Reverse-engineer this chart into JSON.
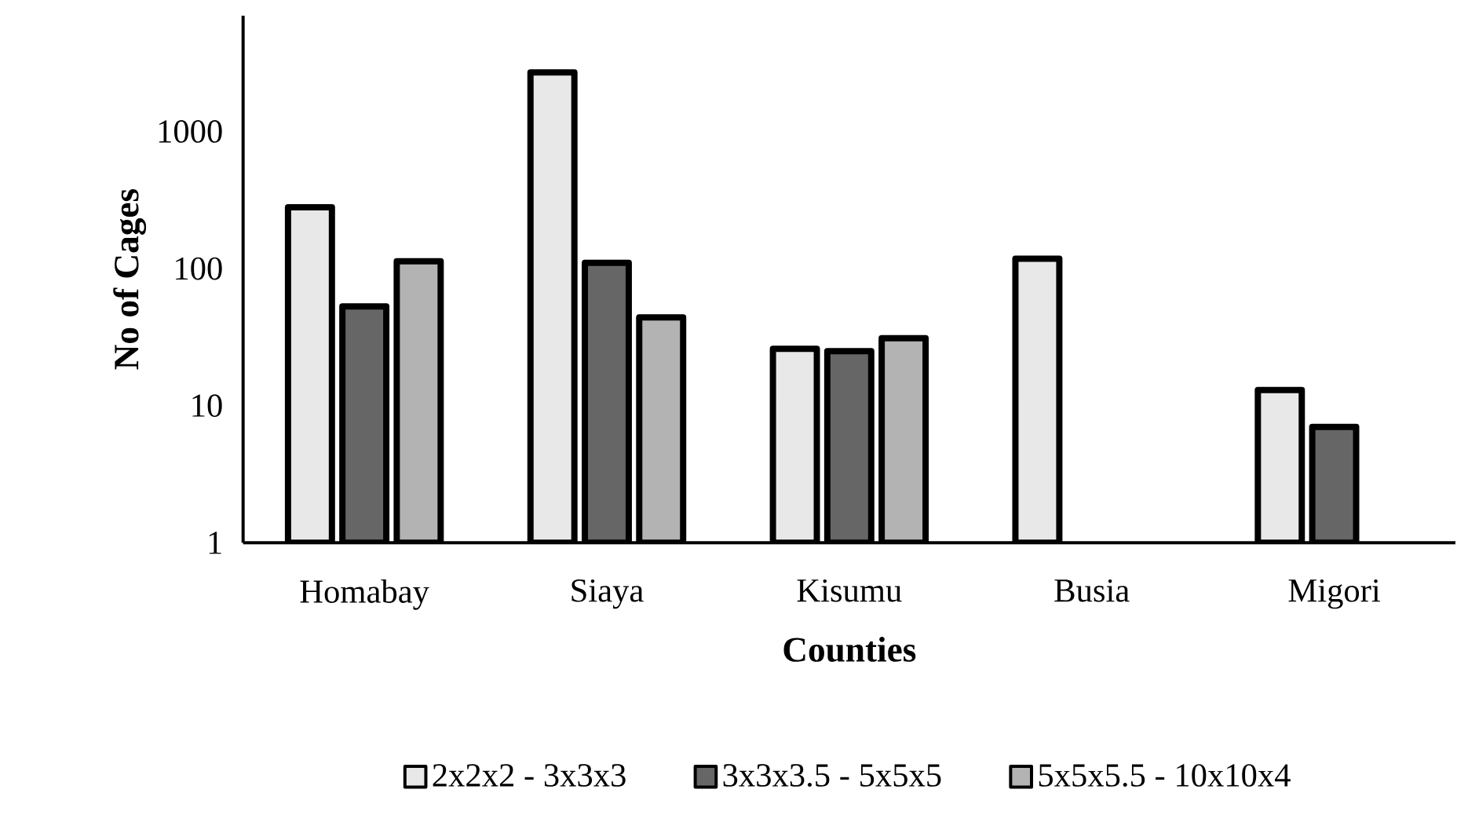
{
  "chart_data": {
    "type": "bar",
    "xlabel": "Counties",
    "ylabel": "No of Cages",
    "categories": [
      "Homabay",
      "Siaya",
      "Kisumu",
      "Busia",
      "Migori"
    ],
    "series": [
      {
        "name": "2x2x2 - 3x3x3",
        "color": "#e8e8e8",
        "values": [
          280,
          2700,
          26,
          118,
          13
        ]
      },
      {
        "name": "3x3x3.5 - 5x5x5",
        "color": "#666666",
        "values": [
          53,
          110,
          25,
          null,
          7
        ]
      },
      {
        "name": "5x5x5.5 - 10x10x4",
        "color": "#b3b3b3",
        "values": [
          113,
          44,
          31,
          null,
          null
        ]
      }
    ],
    "log": "y",
    "ylim": [
      1,
      7000
    ],
    "yticks": [
      1,
      10,
      100,
      1000
    ],
    "grid": false,
    "legend": "bottom"
  }
}
